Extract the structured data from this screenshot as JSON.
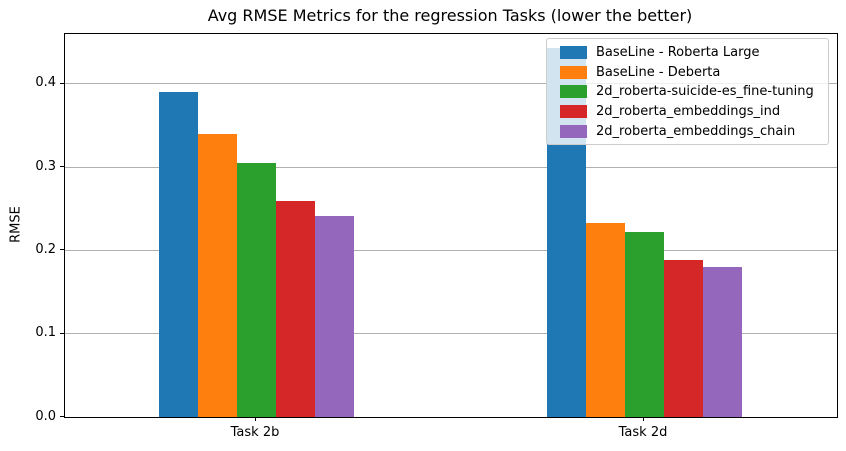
{
  "chart_data": {
    "type": "bar",
    "title": "Avg RMSE Metrics for the regression Tasks (lower the better)",
    "ylabel": "RMSE",
    "xlabel": "",
    "categories": [
      "Task 2b",
      "Task 2d"
    ],
    "series": [
      {
        "name": "BaseLine - Roberta Large",
        "color": "#1f77b4",
        "values": [
          0.39,
          0.443
        ]
      },
      {
        "name": "BaseLine - Deberta",
        "color": "#ff7f0e",
        "values": [
          0.34,
          0.233
        ]
      },
      {
        "name": "2d_roberta-suicide-es_fine-tuning",
        "color": "#2ca02c",
        "values": [
          0.305,
          0.222
        ]
      },
      {
        "name": "2d_roberta_embeddings_ind",
        "color": "#d62728",
        "values": [
          0.26,
          0.188
        ]
      },
      {
        "name": "2d_roberta_embeddings_chain",
        "color": "#9467bd",
        "values": [
          0.242,
          0.18
        ]
      }
    ],
    "ylim": [
      0,
      0.46
    ],
    "yticks": [
      "0.0",
      "0.1",
      "0.2",
      "0.3",
      "0.4"
    ],
    "grid": true,
    "grid_color": "#b0b0b0",
    "axis_color": "#000000",
    "legend_position": "upper right"
  }
}
